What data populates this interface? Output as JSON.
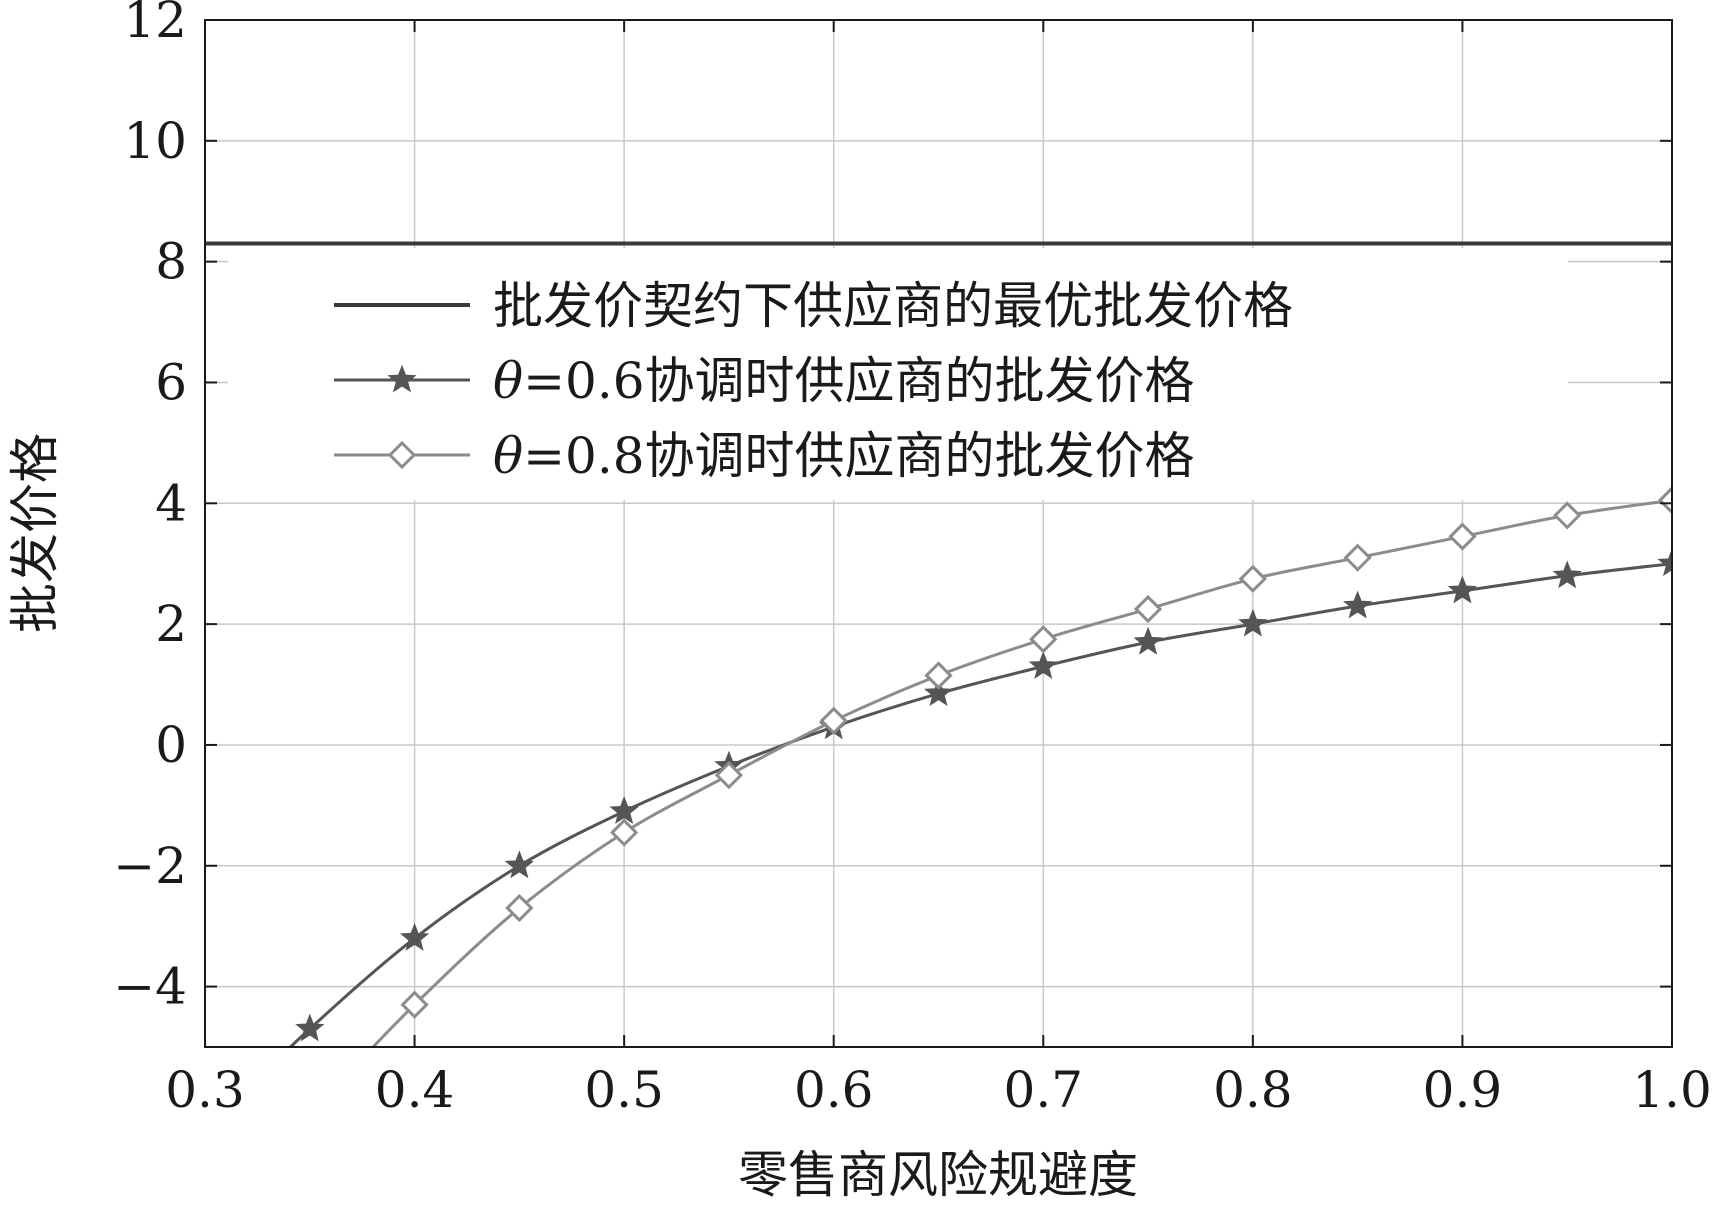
{
  "chart_data": {
    "type": "line",
    "xlabel": "零售商风险规避度",
    "ylabel": "批发价格",
    "xlim": [
      0.3,
      1.0
    ],
    "ylim": [
      -5,
      12
    ],
    "xticks": [
      "0.3",
      "0.4",
      "0.5",
      "0.6",
      "0.7",
      "0.8",
      "0.9",
      "1.0"
    ],
    "yticks": [
      "−4",
      "−2",
      "0",
      "2",
      "4",
      "6",
      "8",
      "10",
      "12"
    ],
    "grid": true,
    "legend_position": "top",
    "series": [
      {
        "name": "批发价契约下供应商的最优批发价格",
        "marker": "none",
        "color": "#3a3a3a",
        "x": [
          0.3,
          1.0
        ],
        "y": [
          8.3,
          8.3
        ]
      },
      {
        "name": "θ=0.6协调时供应商的批发价格",
        "name_symbol": "θ",
        "name_rest": "=0.6协调时供应商的批发价格",
        "marker": "star",
        "color": "#555555",
        "x": [
          0.35,
          0.4,
          0.45,
          0.5,
          0.55,
          0.6,
          0.65,
          0.7,
          0.75,
          0.8,
          0.85,
          0.9,
          0.95,
          1.0
        ],
        "y": [
          -4.7,
          -3.2,
          -2.0,
          -1.1,
          -0.35,
          0.3,
          0.85,
          1.3,
          1.7,
          2.0,
          2.3,
          2.55,
          2.8,
          3.0
        ]
      },
      {
        "name": "θ=0.8协调时供应商的批发价格",
        "name_symbol": "θ",
        "name_rest": "=0.8协调时供应商的批发价格",
        "marker": "diamond",
        "color": "#8c8c8c",
        "x": [
          0.4,
          0.45,
          0.5,
          0.55,
          0.6,
          0.65,
          0.7,
          0.75,
          0.8,
          0.85,
          0.9,
          0.95,
          1.0
        ],
        "y": [
          -4.3,
          -2.7,
          -1.45,
          -0.5,
          0.4,
          1.15,
          1.75,
          2.25,
          2.75,
          3.1,
          3.45,
          3.8,
          4.05
        ]
      }
    ]
  }
}
